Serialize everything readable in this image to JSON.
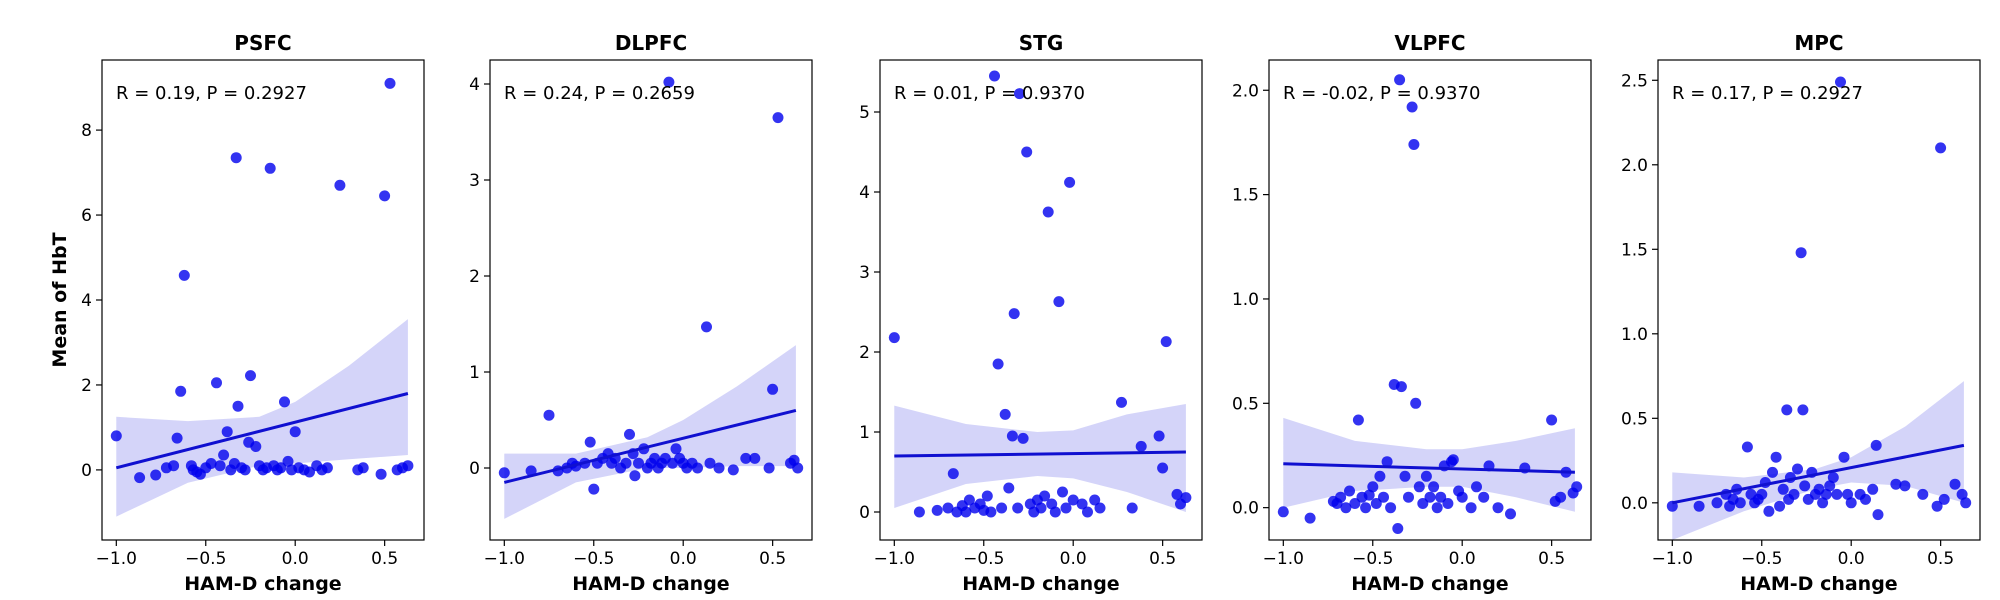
{
  "chart_data": [
    {
      "type": "scatter",
      "title": "PSFC",
      "xlabel": "HAM-D change",
      "ylabel": "Mean of HbT",
      "annotation": "R = 0.19, P = 0.2927",
      "xlim": [
        -1.08,
        0.72
      ],
      "ylim": [
        -1.65,
        9.65
      ],
      "xticks": [
        -1.0,
        -0.5,
        0.0,
        0.5
      ],
      "xtick_labels": [
        "−1.0",
        "−0.5",
        "0.0",
        "0.5"
      ],
      "yticks": [
        0,
        2,
        4,
        6,
        8
      ],
      "ytick_labels": [
        "0",
        "2",
        "4",
        "6",
        "8"
      ],
      "points": [
        [
          -1.0,
          0.8
        ],
        [
          -0.87,
          -0.18
        ],
        [
          -0.78,
          -0.12
        ],
        [
          -0.72,
          0.05
        ],
        [
          -0.68,
          0.1
        ],
        [
          -0.66,
          0.75
        ],
        [
          -0.64,
          1.85
        ],
        [
          -0.62,
          4.58
        ],
        [
          -0.58,
          0.1
        ],
        [
          -0.57,
          0.0
        ],
        [
          -0.55,
          -0.05
        ],
        [
          -0.53,
          -0.1
        ],
        [
          -0.5,
          0.05
        ],
        [
          -0.47,
          0.15
        ],
        [
          -0.44,
          2.05
        ],
        [
          -0.42,
          0.1
        ],
        [
          -0.4,
          0.35
        ],
        [
          -0.38,
          0.9
        ],
        [
          -0.36,
          0.0
        ],
        [
          -0.34,
          0.15
        ],
        [
          -0.33,
          7.35
        ],
        [
          -0.32,
          1.5
        ],
        [
          -0.3,
          0.05
        ],
        [
          -0.28,
          0.0
        ],
        [
          -0.26,
          0.65
        ],
        [
          -0.25,
          2.22
        ],
        [
          -0.22,
          0.55
        ],
        [
          -0.2,
          0.1
        ],
        [
          -0.18,
          0.0
        ],
        [
          -0.16,
          0.05
        ],
        [
          -0.14,
          7.1
        ],
        [
          -0.12,
          0.1
        ],
        [
          -0.1,
          0.0
        ],
        [
          -0.08,
          0.05
        ],
        [
          -0.06,
          1.6
        ],
        [
          -0.04,
          0.2
        ],
        [
          -0.02,
          0.0
        ],
        [
          0.0,
          0.9
        ],
        [
          0.02,
          0.05
        ],
        [
          0.05,
          0.0
        ],
        [
          0.08,
          -0.05
        ],
        [
          0.12,
          0.1
        ],
        [
          0.15,
          0.0
        ],
        [
          0.18,
          0.05
        ],
        [
          0.25,
          6.7
        ],
        [
          0.35,
          0.0
        ],
        [
          0.38,
          0.05
        ],
        [
          0.48,
          -0.1
        ],
        [
          0.5,
          6.45
        ],
        [
          0.53,
          9.1
        ],
        [
          0.57,
          0.0
        ],
        [
          0.6,
          0.05
        ],
        [
          0.63,
          0.1
        ]
      ],
      "fit": {
        "x": [
          -1.0,
          0.63
        ],
        "y": [
          0.05,
          1.8
        ]
      },
      "ci": {
        "x": [
          -1.0,
          -0.6,
          -0.2,
          0.0,
          0.3,
          0.63
        ],
        "lower": [
          -1.1,
          -0.3,
          0.1,
          0.15,
          0.25,
          0.35
        ],
        "upper": [
          1.25,
          1.15,
          1.25,
          1.6,
          2.45,
          3.55
        ]
      }
    },
    {
      "type": "scatter",
      "title": "DLPFC",
      "xlabel": "HAM-D change",
      "ylabel": "",
      "annotation": "R = 0.24, P = 0.2659",
      "xlim": [
        -1.08,
        0.72
      ],
      "ylim": [
        -0.75,
        4.25
      ],
      "xticks": [
        -1.0,
        -0.5,
        0.0,
        0.5
      ],
      "xtick_labels": [
        "−1.0",
        "−0.5",
        "0.0",
        "0.5"
      ],
      "yticks": [
        0,
        1,
        2,
        3,
        4
      ],
      "ytick_labels": [
        "0",
        "1",
        "2",
        "3",
        "4"
      ],
      "points": [
        [
          -1.0,
          -0.05
        ],
        [
          -0.85,
          -0.03
        ],
        [
          -0.75,
          0.55
        ],
        [
          -0.7,
          -0.03
        ],
        [
          -0.65,
          0.0
        ],
        [
          -0.62,
          0.05
        ],
        [
          -0.6,
          0.02
        ],
        [
          -0.55,
          0.05
        ],
        [
          -0.52,
          0.27
        ],
        [
          -0.5,
          -0.22
        ],
        [
          -0.48,
          0.05
        ],
        [
          -0.45,
          0.1
        ],
        [
          -0.42,
          0.15
        ],
        [
          -0.4,
          0.05
        ],
        [
          -0.38,
          0.1
        ],
        [
          -0.35,
          0.0
        ],
        [
          -0.32,
          0.05
        ],
        [
          -0.3,
          0.35
        ],
        [
          -0.28,
          0.15
        ],
        [
          -0.27,
          -0.08
        ],
        [
          -0.25,
          0.05
        ],
        [
          -0.22,
          0.2
        ],
        [
          -0.2,
          0.0
        ],
        [
          -0.18,
          0.05
        ],
        [
          -0.16,
          0.1
        ],
        [
          -0.14,
          0.0
        ],
        [
          -0.12,
          0.05
        ],
        [
          -0.1,
          0.1
        ],
        [
          -0.08,
          4.02
        ],
        [
          -0.06,
          0.05
        ],
        [
          -0.04,
          0.2
        ],
        [
          -0.02,
          0.1
        ],
        [
          0.0,
          0.05
        ],
        [
          0.02,
          0.0
        ],
        [
          0.05,
          0.05
        ],
        [
          0.08,
          0.0
        ],
        [
          0.13,
          1.47
        ],
        [
          0.15,
          0.05
        ],
        [
          0.2,
          0.0
        ],
        [
          0.28,
          -0.02
        ],
        [
          0.35,
          0.1
        ],
        [
          0.4,
          0.1
        ],
        [
          0.48,
          0.0
        ],
        [
          0.5,
          0.82
        ],
        [
          0.53,
          3.65
        ],
        [
          0.6,
          0.05
        ],
        [
          0.62,
          0.08
        ],
        [
          0.64,
          0.0
        ]
      ],
      "fit": {
        "x": [
          -1.0,
          0.63
        ],
        "y": [
          -0.15,
          0.6
        ]
      },
      "ci": {
        "x": [
          -1.0,
          -0.6,
          -0.2,
          0.0,
          0.3,
          0.63
        ],
        "lower": [
          -0.53,
          -0.15,
          0.0,
          0.0,
          0.02,
          0.02
        ],
        "upper": [
          0.15,
          0.15,
          0.32,
          0.5,
          0.85,
          1.28
        ]
      }
    },
    {
      "type": "scatter",
      "title": "STG",
      "xlabel": "HAM-D change",
      "ylabel": "",
      "annotation": "R = 0.01, P = 0.9370",
      "xlim": [
        -1.08,
        0.72
      ],
      "ylim": [
        -0.35,
        5.65
      ],
      "xticks": [
        -1.0,
        -0.5,
        0.0,
        0.5
      ],
      "xtick_labels": [
        "−1.0",
        "−0.5",
        "0.0",
        "0.5"
      ],
      "yticks": [
        0,
        1,
        2,
        3,
        4,
        5
      ],
      "ytick_labels": [
        "0",
        "1",
        "2",
        "3",
        "4",
        "5"
      ],
      "points": [
        [
          -1.0,
          2.18
        ],
        [
          -0.86,
          0.0
        ],
        [
          -0.76,
          0.02
        ],
        [
          -0.7,
          0.05
        ],
        [
          -0.67,
          0.48
        ],
        [
          -0.65,
          0.0
        ],
        [
          -0.62,
          0.08
        ],
        [
          -0.6,
          0.0
        ],
        [
          -0.58,
          0.15
        ],
        [
          -0.55,
          0.05
        ],
        [
          -0.52,
          0.1
        ],
        [
          -0.5,
          0.02
        ],
        [
          -0.48,
          0.2
        ],
        [
          -0.46,
          0.0
        ],
        [
          -0.44,
          5.45
        ],
        [
          -0.42,
          1.85
        ],
        [
          -0.4,
          0.05
        ],
        [
          -0.38,
          1.22
        ],
        [
          -0.36,
          0.3
        ],
        [
          -0.34,
          0.95
        ],
        [
          -0.33,
          2.48
        ],
        [
          -0.31,
          0.05
        ],
        [
          -0.3,
          5.23
        ],
        [
          -0.28,
          0.92
        ],
        [
          -0.26,
          4.5
        ],
        [
          -0.24,
          0.1
        ],
        [
          -0.22,
          0.0
        ],
        [
          -0.2,
          0.15
        ],
        [
          -0.18,
          0.05
        ],
        [
          -0.16,
          0.2
        ],
        [
          -0.14,
          3.75
        ],
        [
          -0.12,
          0.1
        ],
        [
          -0.1,
          0.0
        ],
        [
          -0.08,
          2.63
        ],
        [
          -0.06,
          0.25
        ],
        [
          -0.04,
          0.05
        ],
        [
          -0.02,
          4.12
        ],
        [
          0.0,
          0.15
        ],
        [
          0.05,
          0.1
        ],
        [
          0.08,
          0.0
        ],
        [
          0.12,
          0.15
        ],
        [
          0.15,
          0.05
        ],
        [
          0.27,
          1.37
        ],
        [
          0.33,
          0.05
        ],
        [
          0.38,
          0.82
        ],
        [
          0.48,
          0.95
        ],
        [
          0.5,
          0.55
        ],
        [
          0.52,
          2.13
        ],
        [
          0.58,
          0.22
        ],
        [
          0.6,
          0.1
        ],
        [
          0.63,
          0.18
        ]
      ],
      "fit": {
        "x": [
          -1.0,
          0.63
        ],
        "y": [
          0.7,
          0.75
        ]
      },
      "ci": {
        "x": [
          -1.0,
          -0.6,
          -0.2,
          0.0,
          0.3,
          0.63
        ],
        "lower": [
          0.05,
          0.35,
          0.45,
          0.42,
          0.25,
          0.0
        ],
        "upper": [
          1.33,
          1.1,
          1.0,
          1.02,
          1.22,
          1.35
        ]
      }
    },
    {
      "type": "scatter",
      "title": "VLPFC",
      "xlabel": "HAM-D change",
      "ylabel": "",
      "annotation": "R = -0.02, P = 0.9370",
      "xlim": [
        -1.08,
        0.72
      ],
      "ylim": [
        -0.155,
        2.145
      ],
      "xticks": [
        -1.0,
        -0.5,
        0.0,
        0.5
      ],
      "xtick_labels": [
        "−1.0",
        "−0.5",
        "0.0",
        "0.5"
      ],
      "yticks": [
        0.0,
        0.5,
        1.0,
        1.5,
        2.0
      ],
      "ytick_labels": [
        "0.0",
        "0.5",
        "1.0",
        "1.5",
        "2.0"
      ],
      "points": [
        [
          -1.0,
          -0.02
        ],
        [
          -0.85,
          -0.05
        ],
        [
          -0.72,
          0.03
        ],
        [
          -0.7,
          0.02
        ],
        [
          -0.68,
          0.05
        ],
        [
          -0.65,
          0.0
        ],
        [
          -0.63,
          0.08
        ],
        [
          -0.6,
          0.02
        ],
        [
          -0.58,
          0.42
        ],
        [
          -0.56,
          0.05
        ],
        [
          -0.54,
          0.0
        ],
        [
          -0.52,
          0.06
        ],
        [
          -0.5,
          0.1
        ],
        [
          -0.48,
          0.02
        ],
        [
          -0.46,
          0.15
        ],
        [
          -0.44,
          0.05
        ],
        [
          -0.42,
          0.22
        ],
        [
          -0.4,
          0.0
        ],
        [
          -0.38,
          0.59
        ],
        [
          -0.36,
          -0.1
        ],
        [
          -0.35,
          2.05
        ],
        [
          -0.34,
          0.58
        ],
        [
          -0.32,
          0.15
        ],
        [
          -0.3,
          0.05
        ],
        [
          -0.28,
          1.92
        ],
        [
          -0.27,
          1.74
        ],
        [
          -0.26,
          0.5
        ],
        [
          -0.24,
          0.1
        ],
        [
          -0.22,
          0.02
        ],
        [
          -0.2,
          0.15
        ],
        [
          -0.18,
          0.05
        ],
        [
          -0.16,
          0.1
        ],
        [
          -0.14,
          0.0
        ],
        [
          -0.12,
          0.05
        ],
        [
          -0.1,
          0.2
        ],
        [
          -0.08,
          0.02
        ],
        [
          -0.06,
          0.22
        ],
        [
          -0.05,
          0.23
        ],
        [
          -0.02,
          0.08
        ],
        [
          0.0,
          0.05
        ],
        [
          0.05,
          0.0
        ],
        [
          0.08,
          0.1
        ],
        [
          0.12,
          0.05
        ],
        [
          0.15,
          0.2
        ],
        [
          0.2,
          0.0
        ],
        [
          0.27,
          -0.03
        ],
        [
          0.35,
          0.19
        ],
        [
          0.5,
          0.42
        ],
        [
          0.52,
          0.03
        ],
        [
          0.55,
          0.05
        ],
        [
          0.58,
          0.17
        ],
        [
          0.62,
          0.07
        ],
        [
          0.64,
          0.1
        ]
      ],
      "fit": {
        "x": [
          -1.0,
          0.63
        ],
        "y": [
          0.21,
          0.17
        ]
      },
      "ci": {
        "x": [
          -1.0,
          -0.6,
          -0.2,
          0.0,
          0.3,
          0.63
        ],
        "lower": [
          0.0,
          0.08,
          0.1,
          0.1,
          0.05,
          -0.02
        ],
        "upper": [
          0.43,
          0.32,
          0.28,
          0.28,
          0.32,
          0.38
        ]
      }
    },
    {
      "type": "scatter",
      "title": "MPC",
      "xlabel": "HAM-D change",
      "ylabel": "",
      "annotation": "R = 0.17, P = 0.2927",
      "xlim": [
        -1.08,
        0.72
      ],
      "ylim": [
        -0.22,
        2.62
      ],
      "xticks": [
        -1.0,
        -0.5,
        0.0,
        0.5
      ],
      "xtick_labels": [
        "−1.0",
        "−0.5",
        "0.0",
        "0.5"
      ],
      "yticks": [
        0.0,
        0.5,
        1.0,
        1.5,
        2.0,
        2.5
      ],
      "ytick_labels": [
        "0.0",
        "0.5",
        "1.0",
        "1.5",
        "2.0",
        "2.5"
      ],
      "points": [
        [
          -1.0,
          -0.02
        ],
        [
          -0.85,
          -0.02
        ],
        [
          -0.75,
          0.0
        ],
        [
          -0.7,
          0.05
        ],
        [
          -0.68,
          -0.02
        ],
        [
          -0.66,
          0.02
        ],
        [
          -0.64,
          0.08
        ],
        [
          -0.62,
          0.0
        ],
        [
          -0.58,
          0.33
        ],
        [
          -0.56,
          0.05
        ],
        [
          -0.54,
          0.0
        ],
        [
          -0.52,
          0.02
        ],
        [
          -0.5,
          0.05
        ],
        [
          -0.48,
          0.12
        ],
        [
          -0.46,
          -0.05
        ],
        [
          -0.44,
          0.18
        ],
        [
          -0.42,
          0.27
        ],
        [
          -0.4,
          -0.02
        ],
        [
          -0.38,
          0.08
        ],
        [
          -0.36,
          0.55
        ],
        [
          -0.35,
          0.02
        ],
        [
          -0.34,
          0.15
        ],
        [
          -0.32,
          0.05
        ],
        [
          -0.3,
          0.2
        ],
        [
          -0.28,
          1.48
        ],
        [
          -0.27,
          0.55
        ],
        [
          -0.26,
          0.1
        ],
        [
          -0.24,
          0.02
        ],
        [
          -0.22,
          0.18
        ],
        [
          -0.2,
          0.05
        ],
        [
          -0.18,
          0.08
        ],
        [
          -0.16,
          0.0
        ],
        [
          -0.14,
          0.05
        ],
        [
          -0.12,
          0.1
        ],
        [
          -0.1,
          0.15
        ],
        [
          -0.08,
          0.05
        ],
        [
          -0.06,
          2.49
        ],
        [
          -0.04,
          0.27
        ],
        [
          -0.02,
          0.05
        ],
        [
          0.0,
          0.0
        ],
        [
          0.05,
          0.05
        ],
        [
          0.08,
          0.02
        ],
        [
          0.12,
          0.08
        ],
        [
          0.14,
          0.34
        ],
        [
          0.15,
          -0.07
        ],
        [
          0.25,
          0.11
        ],
        [
          0.3,
          0.1
        ],
        [
          0.4,
          0.05
        ],
        [
          0.48,
          -0.02
        ],
        [
          0.5,
          2.1
        ],
        [
          0.52,
          0.02
        ],
        [
          0.58,
          0.11
        ],
        [
          0.62,
          0.05
        ],
        [
          0.64,
          0.0
        ]
      ],
      "fit": {
        "x": [
          -1.0,
          0.63
        ],
        "y": [
          0.0,
          0.34
        ]
      },
      "ci": {
        "x": [
          -1.0,
          -0.6,
          -0.2,
          0.0,
          0.3,
          0.63
        ],
        "lower": [
          -0.22,
          -0.05,
          0.08,
          0.12,
          0.1,
          0.0
        ],
        "upper": [
          0.18,
          0.15,
          0.2,
          0.27,
          0.45,
          0.72
        ]
      }
    }
  ],
  "colors": {
    "point": "#0000ee",
    "point_opacity": 0.8,
    "fit_line": "#1010d0",
    "ci_band": "#b8b8f5",
    "ci_opacity": 0.6,
    "axis": "#000000"
  }
}
